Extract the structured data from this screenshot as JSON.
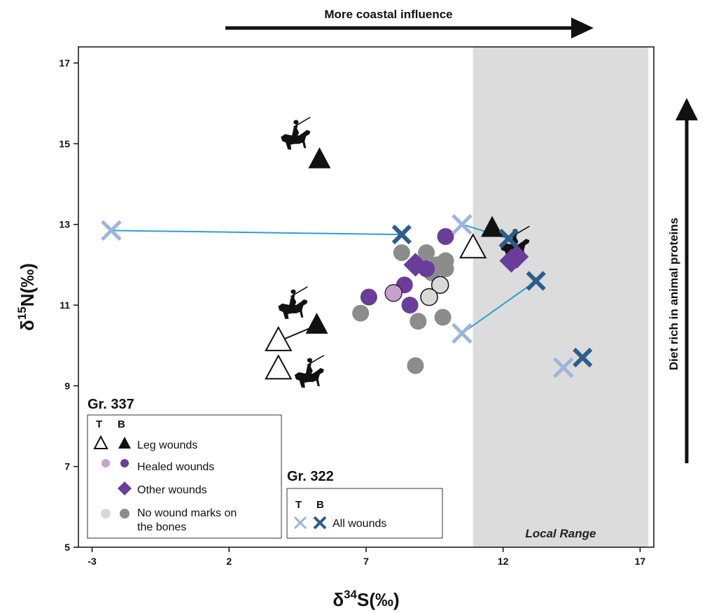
{
  "chart_data": {
    "type": "scatter",
    "xlabel_main": "δ",
    "xlabel_sup": "34",
    "xlabel_rest": "S(‰)",
    "ylabel_main": "δ",
    "ylabel_sup": "15",
    "ylabel_rest": "N(‰)",
    "xlim": [
      -3.5,
      17.5
    ],
    "ylim": [
      5,
      17.4
    ],
    "xticks": [
      -3,
      2,
      7,
      12,
      17
    ],
    "yticks": [
      5,
      7,
      9,
      11,
      13,
      15,
      17
    ],
    "local_range": {
      "x": [
        10.9,
        17.3
      ],
      "label": "Local Range"
    },
    "top_arrow_label": "More coastal influence",
    "right_arrow_label": "Diet rich in animal proteins",
    "colors": {
      "purple": "#6a3d9a",
      "light_purple": "#c9a0cc",
      "grey": "#8c8c8c",
      "light_grey": "#d9d9d9",
      "light_blue": "#9cb5dd",
      "dark_blue": "#2e5d8e",
      "line_blue": "#2a9fd8",
      "local_range": "#dcdcdc"
    },
    "series": [
      {
        "name": "Leg wounds",
        "group": "Gr. 337",
        "tissue": "T",
        "marker": "triangle-open",
        "points": [
          [
            3.8,
            10.1
          ],
          [
            3.8,
            9.4
          ],
          [
            10.9,
            12.4
          ]
        ]
      },
      {
        "name": "Leg wounds",
        "group": "Gr. 337",
        "tissue": "B",
        "marker": "triangle-filled",
        "points": [
          [
            5.3,
            14.6
          ],
          [
            5.2,
            10.5
          ],
          [
            11.6,
            12.9
          ]
        ]
      },
      {
        "name": "Healed wounds",
        "group": "Gr. 337",
        "tissue": "T",
        "marker": "circle-light-purple",
        "points": [
          [
            8.0,
            11.3
          ]
        ]
      },
      {
        "name": "Healed wounds",
        "group": "Gr. 337",
        "tissue": "B",
        "marker": "circle-purple",
        "points": [
          [
            7.1,
            11.2
          ],
          [
            8.4,
            11.5
          ],
          [
            8.6,
            11.0
          ],
          [
            9.2,
            11.9
          ],
          [
            9.9,
            12.7
          ]
        ]
      },
      {
        "name": "Other wounds",
        "group": "Gr. 337",
        "tissue": "B",
        "marker": "diamond-purple",
        "points": [
          [
            8.8,
            12.0
          ],
          [
            12.3,
            12.1
          ],
          [
            12.5,
            12.2
          ]
        ]
      },
      {
        "name": "No wound marks on the bones",
        "group": "Gr. 337",
        "tissue": "T",
        "marker": "circle-light-grey",
        "points": [
          [
            9.7,
            11.5
          ],
          [
            9.3,
            11.2
          ]
        ]
      },
      {
        "name": "No wound marks on the bones",
        "group": "Gr. 337",
        "tissue": "B",
        "marker": "circle-grey",
        "points": [
          [
            6.8,
            10.8
          ],
          [
            8.3,
            12.3
          ],
          [
            8.9,
            10.6
          ],
          [
            8.8,
            9.5
          ],
          [
            9.2,
            12.3
          ],
          [
            9.4,
            11.8
          ],
          [
            9.6,
            12.0
          ],
          [
            9.9,
            12.1
          ],
          [
            9.9,
            11.9
          ],
          [
            9.8,
            10.7
          ]
        ]
      },
      {
        "name": "All wounds",
        "group": "Gr. 322",
        "tissue": "T",
        "marker": "x-light-blue",
        "points": [
          [
            -2.3,
            12.85
          ],
          [
            10.5,
            13.0
          ],
          [
            10.5,
            10.3
          ],
          [
            14.2,
            9.45
          ]
        ]
      },
      {
        "name": "All wounds",
        "group": "Gr. 322",
        "tissue": "B",
        "marker": "x-dark-blue",
        "points": [
          [
            8.3,
            12.75
          ],
          [
            12.2,
            12.65
          ],
          [
            13.2,
            11.6
          ],
          [
            14.9,
            9.7
          ]
        ]
      }
    ],
    "connectors": [
      {
        "color": "line_blue",
        "from": [
          -2.3,
          12.85
        ],
        "to": [
          8.3,
          12.75
        ]
      },
      {
        "color": "line_blue",
        "from": [
          10.5,
          13.0
        ],
        "to": [
          12.2,
          12.65
        ]
      },
      {
        "color": "line_blue",
        "from": [
          10.5,
          10.3
        ],
        "to": [
          13.2,
          11.6
        ]
      },
      {
        "color": "black",
        "from": [
          3.8,
          10.1
        ],
        "to": [
          5.2,
          10.5
        ]
      }
    ],
    "horse_icons": [
      {
        "name": "horse-rider-icon",
        "at": [
          4.4,
          15.1
        ]
      },
      {
        "name": "horse-rider-icon",
        "at": [
          12.4,
          12.4
        ]
      },
      {
        "name": "horse-rider-icon",
        "at": [
          4.3,
          10.9
        ]
      },
      {
        "name": "horse-rider-icon",
        "at": [
          4.9,
          9.2
        ]
      }
    ]
  },
  "legend_337": {
    "title": "Gr. 337",
    "col_t": "T",
    "col_b": "B",
    "items": [
      {
        "label": "Leg wounds"
      },
      {
        "label": "Healed wounds"
      },
      {
        "label": "Other wounds"
      },
      {
        "label_line1": "No wound marks on",
        "label_line2": "the bones"
      }
    ]
  },
  "legend_322": {
    "title": "Gr. 322",
    "col_t": "T",
    "col_b": "B",
    "items": [
      {
        "label": "All wounds"
      }
    ]
  }
}
